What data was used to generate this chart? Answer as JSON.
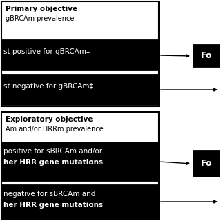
{
  "white": "#ffffff",
  "black": "#000000",
  "light_gray": "#e8e8e8",
  "primary_title_bold": "Primary objective",
  "primary_title_normal": "gBRCAm prevalence",
  "primary_box1_line1": "st positive for gBRCAm‡",
  "primary_box2_line1": "st negative for gBRCAm‡",
  "exploratory_title_bold": "Exploratory objective",
  "exploratory_title_normal": "Am and/or HRRm prevalence",
  "exp_box1_line1": "positive for sBRCAm and/or",
  "exp_box1_line2": "her HRR gene mutations",
  "exp_box2_line1": "negative for sBRCAm and",
  "exp_box2_line2": "her HRR gene mutations",
  "fo_label": "Fo"
}
